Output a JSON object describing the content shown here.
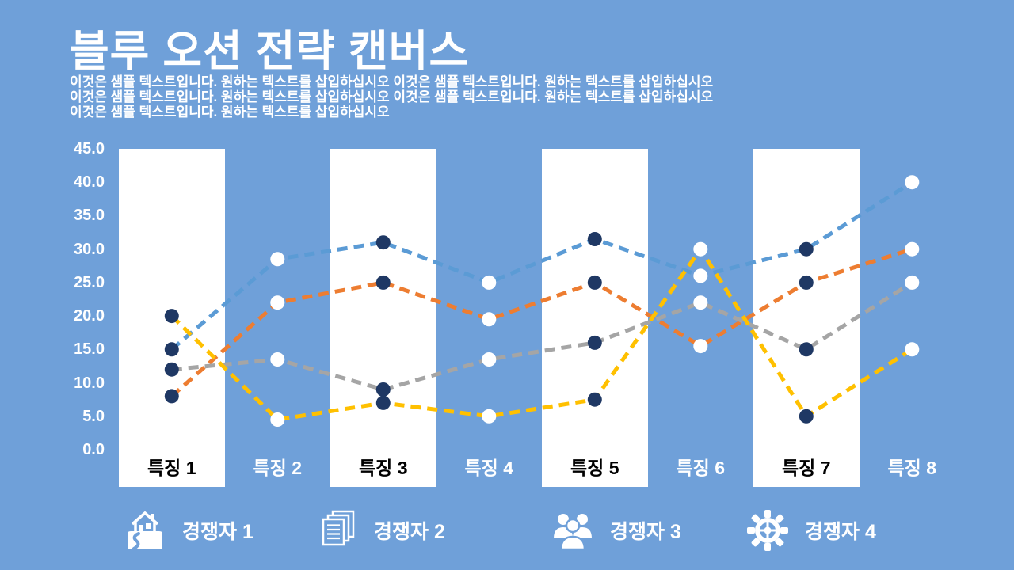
{
  "title": "블루 오션 전략 캔버스",
  "subtitle_lines": [
    "이것은 샘플 텍스트입니다. 원하는 텍스트를 삽입하십시오 이것은 샘플 텍스트입니다. 원하는 텍스트를 삽입하십시오",
    "이것은 샘플 텍스트입니다. 원하는 텍스트를 삽입하십시오 이것은 샘플 텍스트입니다. 원하는 텍스트를 삽입하십시오",
    "이것은 샘플 텍스트입니다. 원하는 텍스트를 삽입하십시오"
  ],
  "colors": {
    "background": "#6FA0D9",
    "band": "#FFFFFF",
    "title_text": "#FFFFFF",
    "axis_text": "#FFFFFF",
    "marker_on_band": "#1F3864",
    "marker_on_background": "#FFFFFF"
  },
  "chart_data": {
    "type": "line",
    "title": "블루 오션 전략 캔버스",
    "xlabel": "",
    "ylabel": "",
    "line_style": "dashed",
    "grid": false,
    "legend_position": "bottom",
    "ylim": [
      0,
      45
    ],
    "ytick_step": 5,
    "yticks": [
      "45.0",
      "40.0",
      "35.0",
      "30.0",
      "25.0",
      "20.0",
      "15.0",
      "10.0",
      "5.0",
      "0.0"
    ],
    "categories": [
      "특징 1",
      "특징 2",
      "특징 3",
      "특징 4",
      "특징 5",
      "특징 6",
      "특징 7",
      "특징 8"
    ],
    "band_category_indexes": [
      0,
      2,
      4,
      6
    ],
    "marker_colors": {
      "on_white_band": "#1F3864",
      "on_background": "#FFFFFF"
    },
    "series": [
      {
        "name": "경쟁자 1",
        "color": "#5B9BD5",
        "values": [
          15,
          28.5,
          31,
          25,
          31.5,
          26,
          30,
          40
        ]
      },
      {
        "name": "경쟁자 2",
        "color": "#ED7D31",
        "values": [
          8,
          22,
          25,
          19.5,
          25,
          15.5,
          25,
          30
        ]
      },
      {
        "name": "경쟁자 3",
        "color": "#A5A5A5",
        "values": [
          12,
          13.5,
          9,
          13.5,
          16,
          22,
          15,
          25
        ]
      },
      {
        "name": "경쟁자 4",
        "color": "#FFC000",
        "values": [
          20,
          4.5,
          7,
          5,
          7.5,
          30,
          5,
          15
        ]
      }
    ]
  },
  "legend": {
    "items": [
      {
        "label": "경쟁자 1",
        "icon": "house-icon"
      },
      {
        "label": "경쟁자 2",
        "icon": "documents-icon"
      },
      {
        "label": "경쟁자 3",
        "icon": "people-icon"
      },
      {
        "label": "경쟁자 4",
        "icon": "gear-icon"
      }
    ]
  }
}
